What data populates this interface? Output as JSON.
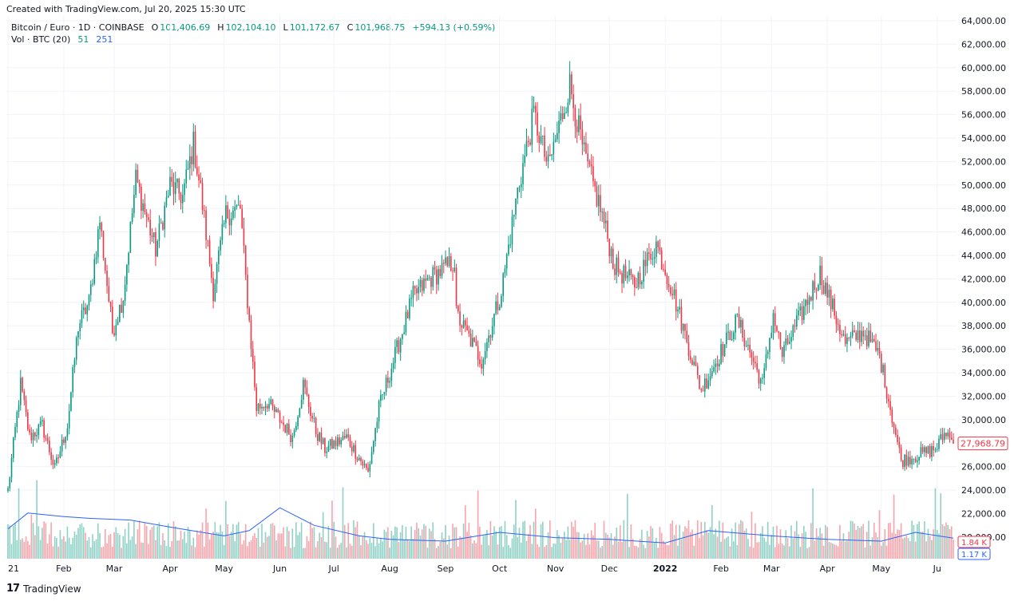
{
  "header": {
    "credit": "Created with TradingView.com, Jul 20, 2025 15:30 UTC",
    "symbol": "Bitcoin / Euro · 1D · COINBASE",
    "o_label": "O",
    "o_value": "101,406.69",
    "h_label": "H",
    "h_value": "102,104.10",
    "l_label": "L",
    "l_value": "101,172.67",
    "c_label": "C",
    "c_value": "101,968.75",
    "change": "+594.13 (+0.59%)",
    "vol_label": "Vol · BTC (20)",
    "vol_value_1": "51",
    "vol_value_2": "251"
  },
  "footer": {
    "brand": "TradingView",
    "logo": "17"
  },
  "colors": {
    "up": "#089981",
    "down": "#f23645",
    "ma": "#2962ff",
    "grid": "#f0f3fa",
    "text": "#131722"
  },
  "chart_data": {
    "type": "candlestick",
    "symbol": "BTC/EUR",
    "yaxis": {
      "ticks": [
        24000,
        26000,
        28000,
        30000,
        32000,
        34000,
        36000,
        38000,
        40000,
        42000,
        44000,
        46000,
        48000,
        50000,
        52000,
        54000,
        56000,
        58000,
        60000,
        62000,
        64000
      ],
      "tick_labels": [
        "24,000.00",
        "26,000.00",
        "28,000.00",
        "30,000.00",
        "32,000.00",
        "34,000.00",
        "36,000.00",
        "38,000.00",
        "40,000.00",
        "42,000.00",
        "44,000.00",
        "46,000.00",
        "48,000.00",
        "50,000.00",
        "52,000.00",
        "54,000.00",
        "56,000.00",
        "58,000.00",
        "60,000.00",
        "62,000.00",
        "64,000.00"
      ],
      "extra_labels": [
        "22,000.00",
        "20,000.00"
      ],
      "range": [
        20000,
        64000
      ]
    },
    "xaxis": {
      "labels": [
        "21",
        "Feb",
        "Mar",
        "Apr",
        "May",
        "Jun",
        "Jul",
        "Aug",
        "Sep",
        "Oct",
        "Nov",
        "Dec",
        "2022",
        "Feb",
        "Mar",
        "Apr",
        "May",
        "Ju"
      ],
      "label_dates": [
        "2021-01-01",
        "2021-02-01",
        "2021-03-01",
        "2021-04-01",
        "2021-05-01",
        "2021-06-01",
        "2021-07-01",
        "2021-08-01",
        "2021-09-01",
        "2021-10-01",
        "2021-11-01",
        "2021-12-01",
        "2022-01-01",
        "2022-02-01",
        "2022-03-01",
        "2022-04-01",
        "2022-05-01",
        "2022-06-01"
      ],
      "range": [
        "2021-01-01",
        "2022-06-10"
      ]
    },
    "price_path": [
      {
        "date": "2021-01-01",
        "close": 24000
      },
      {
        "date": "2021-01-08",
        "close": 33000
      },
      {
        "date": "2021-01-13",
        "close": 28500
      },
      {
        "date": "2021-01-20",
        "close": 29500
      },
      {
        "date": "2021-01-27",
        "close": 25800
      },
      {
        "date": "2021-02-03",
        "close": 29500
      },
      {
        "date": "2021-02-09",
        "close": 38000
      },
      {
        "date": "2021-02-15",
        "close": 40000
      },
      {
        "date": "2021-02-21",
        "close": 47000
      },
      {
        "date": "2021-02-28",
        "close": 37500
      },
      {
        "date": "2021-03-06",
        "close": 40500
      },
      {
        "date": "2021-03-13",
        "close": 50500
      },
      {
        "date": "2021-03-24",
        "close": 44500
      },
      {
        "date": "2021-04-01",
        "close": 50000
      },
      {
        "date": "2021-04-08",
        "close": 49000
      },
      {
        "date": "2021-04-14",
        "close": 53500
      },
      {
        "date": "2021-04-18",
        "close": 49500
      },
      {
        "date": "2021-04-25",
        "close": 41000
      },
      {
        "date": "2021-05-02",
        "close": 47500
      },
      {
        "date": "2021-05-10",
        "close": 48000
      },
      {
        "date": "2021-05-13",
        "close": 42000
      },
      {
        "date": "2021-05-19",
        "close": 31000
      },
      {
        "date": "2021-05-25",
        "close": 31500
      },
      {
        "date": "2021-06-08",
        "close": 28500
      },
      {
        "date": "2021-06-14",
        "close": 33000
      },
      {
        "date": "2021-06-21",
        "close": 29000
      },
      {
        "date": "2021-06-26",
        "close": 27500
      },
      {
        "date": "2021-07-08",
        "close": 28500
      },
      {
        "date": "2021-07-20",
        "close": 25500
      },
      {
        "date": "2021-07-26",
        "close": 31000
      },
      {
        "date": "2021-08-07",
        "close": 37000
      },
      {
        "date": "2021-08-14",
        "close": 40500
      },
      {
        "date": "2021-08-23",
        "close": 42000
      },
      {
        "date": "2021-09-06",
        "close": 43500
      },
      {
        "date": "2021-09-07",
        "close": 39000
      },
      {
        "date": "2021-09-21",
        "close": 35000
      },
      {
        "date": "2021-10-02",
        "close": 41000
      },
      {
        "date": "2021-10-11",
        "close": 49500
      },
      {
        "date": "2021-10-20",
        "close": 56000
      },
      {
        "date": "2021-10-28",
        "close": 51500
      },
      {
        "date": "2021-11-09",
        "close": 58500
      },
      {
        "date": "2021-11-17",
        "close": 52500
      },
      {
        "date": "2021-11-26",
        "close": 48000
      },
      {
        "date": "2021-12-04",
        "close": 43000
      },
      {
        "date": "2021-12-15",
        "close": 41500
      },
      {
        "date": "2021-12-27",
        "close": 45000
      },
      {
        "date": "2022-01-05",
        "close": 41000
      },
      {
        "date": "2022-01-21",
        "close": 32500
      },
      {
        "date": "2022-02-10",
        "close": 38500
      },
      {
        "date": "2022-02-24",
        "close": 33000
      },
      {
        "date": "2022-03-02",
        "close": 39000
      },
      {
        "date": "2022-03-07",
        "close": 35500
      },
      {
        "date": "2022-03-28",
        "close": 42500
      },
      {
        "date": "2022-04-11",
        "close": 36500
      },
      {
        "date": "2022-04-21",
        "close": 37500
      },
      {
        "date": "2022-04-30",
        "close": 35500
      },
      {
        "date": "2022-05-12",
        "close": 26500
      },
      {
        "date": "2022-05-31",
        "close": 27500
      },
      {
        "date": "2022-06-06",
        "close": 29000
      },
      {
        "date": "2022-06-10",
        "close": 27968.79
      }
    ],
    "last_price_label": "27,968.79",
    "volume": {
      "label": "Vol · BTC (20)",
      "last_volume_label": "1.84 K",
      "ma_label": "1.17 K",
      "ma_path": [
        {
          "date": "2021-01-01",
          "value": 1.7
        },
        {
          "date": "2021-01-12",
          "value": 2.6
        },
        {
          "date": "2021-02-01",
          "value": 2.4
        },
        {
          "date": "2021-02-15",
          "value": 2.3
        },
        {
          "date": "2021-03-10",
          "value": 2.2
        },
        {
          "date": "2021-04-01",
          "value": 1.8
        },
        {
          "date": "2021-05-01",
          "value": 1.3
        },
        {
          "date": "2021-05-15",
          "value": 1.6
        },
        {
          "date": "2021-06-01",
          "value": 2.9
        },
        {
          "date": "2021-06-20",
          "value": 1.9
        },
        {
          "date": "2021-07-15",
          "value": 1.3
        },
        {
          "date": "2021-08-01",
          "value": 1.1
        },
        {
          "date": "2021-09-01",
          "value": 1.0
        },
        {
          "date": "2021-10-01",
          "value": 1.5
        },
        {
          "date": "2021-11-01",
          "value": 1.2
        },
        {
          "date": "2021-12-01",
          "value": 1.1
        },
        {
          "date": "2022-01-01",
          "value": 0.9
        },
        {
          "date": "2022-01-25",
          "value": 1.6
        },
        {
          "date": "2022-03-01",
          "value": 1.3
        },
        {
          "date": "2022-04-01",
          "value": 1.1
        },
        {
          "date": "2022-05-01",
          "value": 1.0
        },
        {
          "date": "2022-05-20",
          "value": 1.5
        },
        {
          "date": "2022-06-10",
          "value": 1.17
        }
      ]
    }
  }
}
